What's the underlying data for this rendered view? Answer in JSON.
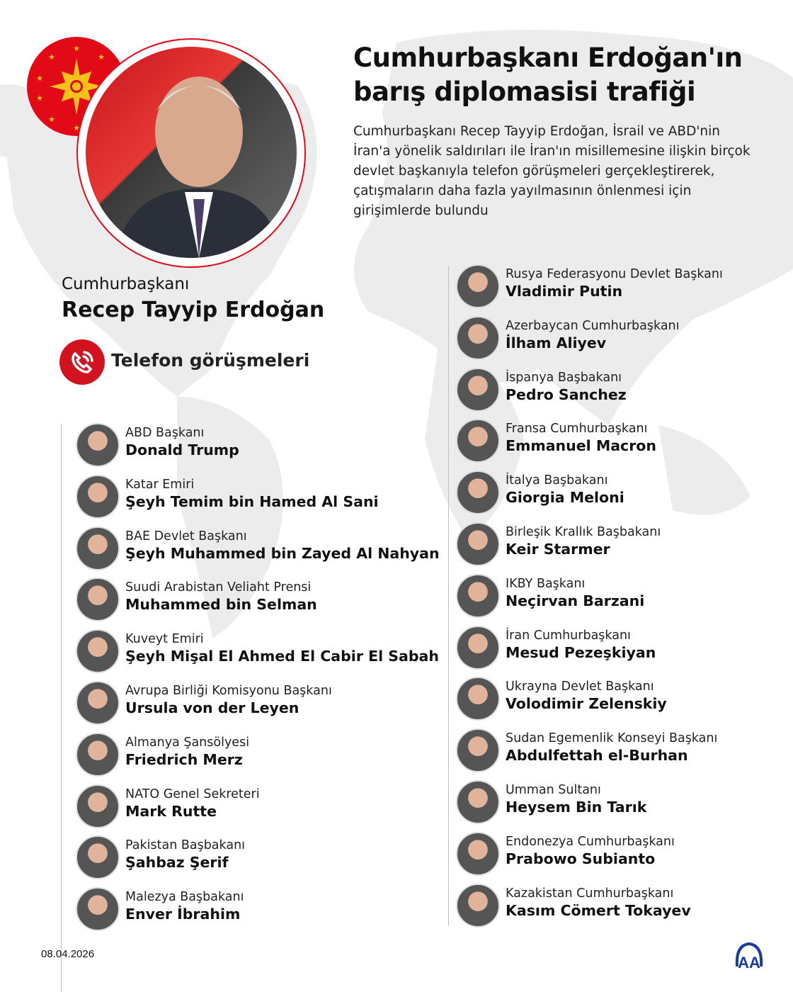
{
  "header": {
    "title": "Cumhurbaşkanı Erdoğan'ın barış diplomasisi trafiği",
    "description": "Cumhurbaşkanı Recep Tayyip Erdoğan, İsrail ve ABD'nin İran'a yönelik saldırıları ile İran'ın misillemesine ilişkin birçok devlet başkanıyla telefon görüşmeleri gerçekleştirerek, çatışmaların daha fazla yayılmasının önlenmesi için girişimlerde bulundu"
  },
  "leader": {
    "role": "Cumhurbaşkanı",
    "name": "Recep Tayyip Erdoğan"
  },
  "calls_label": "Telefon görüşmeleri",
  "left_list": [
    {
      "role": "ABD Başkanı",
      "name": "Donald Trump"
    },
    {
      "role": "Katar Emiri",
      "name": "Şeyh Temim bin Hamed Al Sani"
    },
    {
      "role": "BAE Devlet Başkanı",
      "name": "Şeyh Muhammed bin Zayed Al Nahyan"
    },
    {
      "role": "Suudi Arabistan Veliaht Prensi",
      "name": "Muhammed bin Selman"
    },
    {
      "role": "Kuveyt Emiri",
      "name": "Şeyh Mişal El Ahmed El Cabir El Sabah"
    },
    {
      "role": "Avrupa Birliği Komisyonu Başkanı",
      "name": "Ursula von der Leyen"
    },
    {
      "role": "Almanya Şansölyesi",
      "name": "Friedrich Merz"
    },
    {
      "role": "NATO Genel Sekreteri",
      "name": "Mark Rutte"
    },
    {
      "role": "Pakistan Başbakanı",
      "name": "Şahbaz Şerif"
    },
    {
      "role": "Malezya Başbakanı",
      "name": "Enver İbrahim"
    }
  ],
  "right_list": [
    {
      "role": "Rusya Federasyonu Devlet Başkanı",
      "name": "Vladimir Putin"
    },
    {
      "role": "Azerbaycan Cumhurbaşkanı",
      "name": "İlham Aliyev"
    },
    {
      "role": "İspanya Başbakanı",
      "name": "Pedro Sanchez"
    },
    {
      "role": "Fransa Cumhurbaşkanı",
      "name": "Emmanuel Macron"
    },
    {
      "role": "İtalya Başbakanı",
      "name": "Giorgia Meloni"
    },
    {
      "role": "Birleşik Krallık Başbakanı",
      "name": "Keir Starmer"
    },
    {
      "role": "IKBY Başkanı",
      "name": "Neçirvan Barzani"
    },
    {
      "role": "İran Cumhurbaşkanı",
      "name": "Mesud Pezeşkiyan"
    },
    {
      "role": "Ukrayna Devlet Başkanı",
      "name": "Volodimir Zelenskiy"
    },
    {
      "role": "Sudan Egemenlik Konseyi Başkanı",
      "name": "Abdulfettah el-Burhan"
    },
    {
      "role": "Umman Sultanı",
      "name": "Heysem Bin Tarık"
    },
    {
      "role": "Endonezya Cumhurbaşkanı",
      "name": "Prabowo Subianto"
    },
    {
      "role": "Kazakistan Cumhurbaşkanı",
      "name": "Kasım Cömert Tokayev"
    }
  ],
  "footer": {
    "date": "08.04.2026",
    "logo": "AA"
  },
  "colors": {
    "accent": "#d0131e",
    "map": "#e6e6e6",
    "logo": "#1a3d9c"
  }
}
